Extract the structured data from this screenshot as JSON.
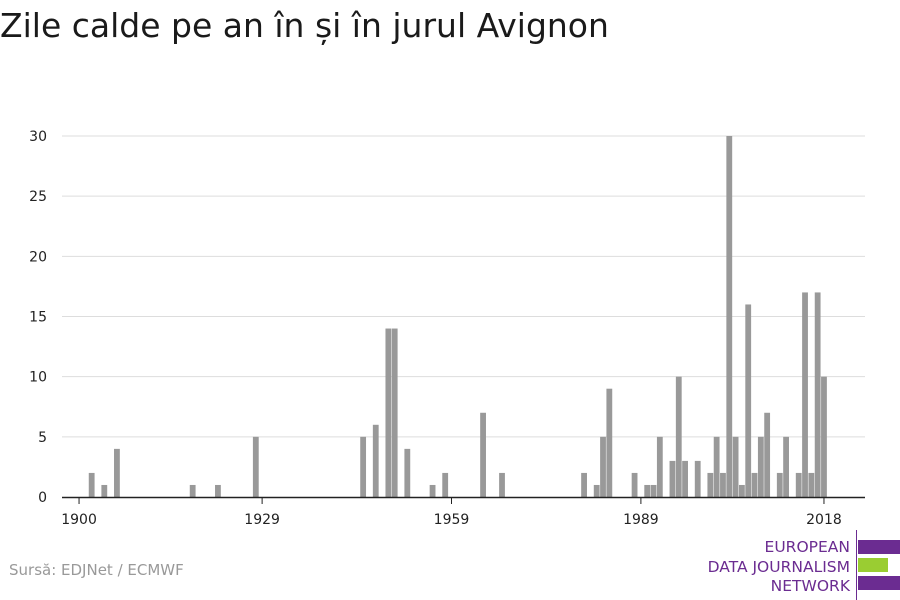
{
  "title": "Zile calde pe an în și în jurul Avignon",
  "source": "Sursă: EDJNet / ECMWF",
  "logo": {
    "lines": [
      "EUROPEAN",
      "DATA JOURNALISM",
      "NETWORK"
    ],
    "colors": {
      "purple": "#6b2c91",
      "green": "#9acd32"
    }
  },
  "chart_data": {
    "type": "bar",
    "title": "Zile calde pe an în și în jurul Avignon",
    "xlabel": "",
    "ylabel": "",
    "xlim": [
      1900,
      2018
    ],
    "ylim": [
      0,
      30
    ],
    "x_ticks": [
      1900,
      1929,
      1959,
      1989,
      2018
    ],
    "y_ticks": [
      0,
      5,
      10,
      15,
      20,
      25,
      30
    ],
    "grid": true,
    "bar_color": "#999999",
    "x": [
      1902,
      1904,
      1906,
      1918,
      1922,
      1928,
      1945,
      1947,
      1949,
      1950,
      1952,
      1956,
      1958,
      1964,
      1967,
      1980,
      1982,
      1983,
      1984,
      1988,
      1990,
      1991,
      1992,
      1994,
      1995,
      1996,
      1998,
      2000,
      2001,
      2002,
      2003,
      2004,
      2005,
      2006,
      2007,
      2008,
      2009,
      2011,
      2012,
      2014,
      2015,
      2016,
      2017
    ],
    "values": [
      2,
      1,
      4,
      1,
      1,
      5,
      5,
      6,
      14,
      14,
      4,
      1,
      2,
      7,
      2,
      2,
      1,
      5,
      9,
      2,
      1,
      1,
      5,
      3,
      10,
      3,
      3,
      2,
      5,
      2,
      30,
      5,
      1,
      16,
      2,
      5,
      7,
      2,
      5,
      2,
      17,
      2,
      17
    ]
  },
  "chart_extra": {
    "x2018": 2018,
    "v2018": 10
  }
}
